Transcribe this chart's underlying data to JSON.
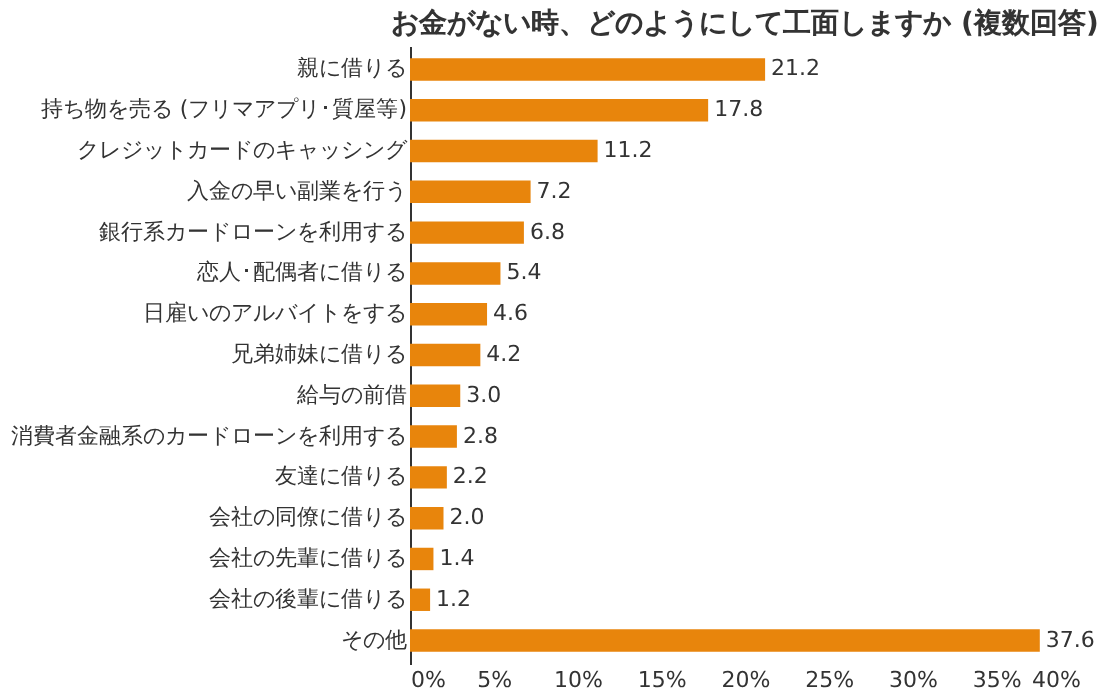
{
  "chart_data": {
    "type": "bar",
    "orientation": "horizontal",
    "title": "お金がない時、どのようにして工面しますか (複数回答)",
    "categories": [
      "親に借りる",
      "持ち物を売る (フリマアプリ･質屋等)",
      "クレジットカードのキャッシング",
      "入金の早い副業を行う",
      "銀行系カードローンを利用する",
      "恋人･配偶者に借りる",
      "日雇いのアルバイトをする",
      "兄弟姉妹に借りる",
      "給与の前借",
      "消費者金融系のカードローンを利用する",
      "友達に借りる",
      "会社の同僚に借りる",
      "会社の先輩に借りる",
      "会社の後輩に借りる",
      "その他"
    ],
    "values": [
      21.2,
      17.8,
      11.2,
      7.2,
      6.8,
      5.4,
      4.6,
      4.2,
      3.0,
      2.8,
      2.2,
      2.0,
      1.4,
      1.2,
      37.6
    ],
    "value_labels": [
      "21.2",
      "17.8",
      "11.2",
      "7.2",
      "6.8",
      "5.4",
      "4.6",
      "4.2",
      "3.0",
      "2.8",
      "2.2",
      "2.0",
      "1.4",
      "1.2",
      "37.6"
    ],
    "color": "#e8850c",
    "xlim": [
      0,
      40
    ],
    "xticks": [
      {
        "value": 0,
        "label": "0%"
      },
      {
        "value": 5,
        "label": "5%"
      },
      {
        "value": 10,
        "label": "10%"
      },
      {
        "value": 15,
        "label": "15%"
      },
      {
        "value": 20,
        "label": "20%"
      },
      {
        "value": 25,
        "label": "25%"
      },
      {
        "value": 30,
        "label": "30%"
      },
      {
        "value": 35,
        "label": "35%"
      },
      {
        "value": 40,
        "label": "40%"
      }
    ],
    "grid": false
  }
}
